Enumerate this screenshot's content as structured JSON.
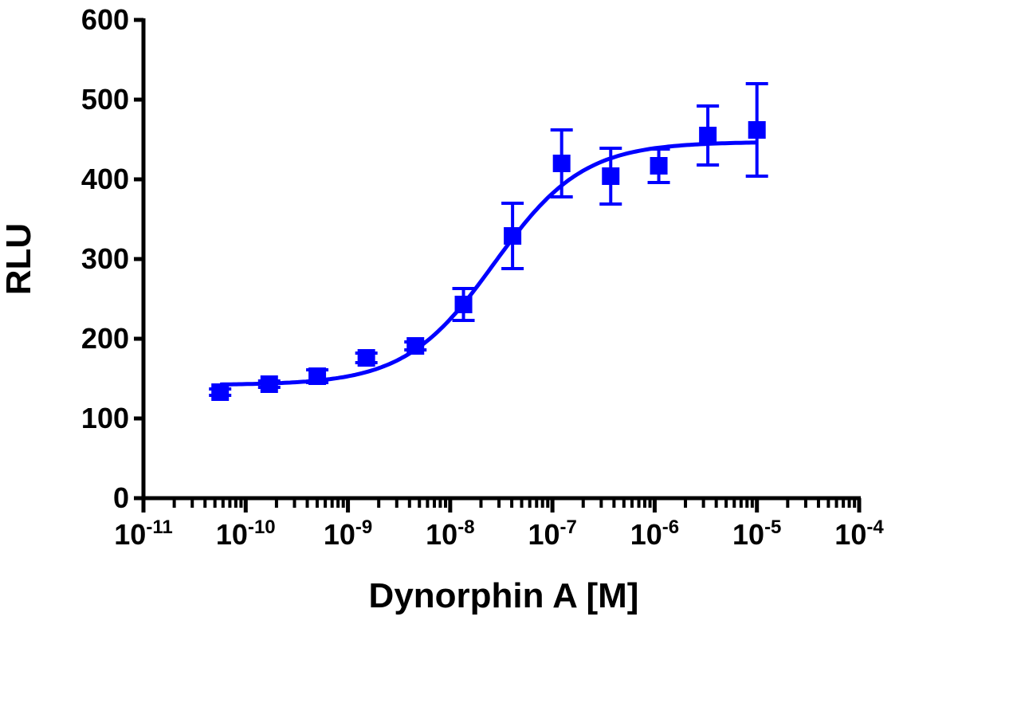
{
  "chart_data": {
    "type": "scatter",
    "title": "",
    "xlabel": "Dynorphin A [M]",
    "ylabel": "RLU",
    "xscale": "log",
    "xlim_log10": [
      -11,
      -4
    ],
    "ylim": [
      0,
      600
    ],
    "yticks": [
      0,
      100,
      200,
      300,
      400,
      500,
      600
    ],
    "xticks_exponents": [
      -11,
      -10,
      -9,
      -8,
      -7,
      -6,
      -5,
      -4
    ],
    "xtick_base": "10",
    "grid": false,
    "color": "#0000ff",
    "series": [
      {
        "name": "Dynorphin A",
        "marker": "square",
        "log10_x": [
          -10.25,
          -9.77,
          -9.3,
          -8.82,
          -8.34,
          -7.87,
          -7.39,
          -6.91,
          -6.43,
          -5.96,
          -5.48,
          -5.0
        ],
        "y": [
          133,
          143,
          153,
          176,
          191,
          243,
          329,
          420,
          404,
          417,
          455,
          462
        ],
        "yerr": [
          4,
          4,
          8,
          6,
          5,
          20,
          41,
          42,
          35,
          21,
          37,
          58
        ]
      }
    ],
    "fit": {
      "model": "sigmoidal dose-response",
      "bottom": 142,
      "top": 447,
      "log_ec50": -7.57,
      "hill": 1.0
    }
  }
}
